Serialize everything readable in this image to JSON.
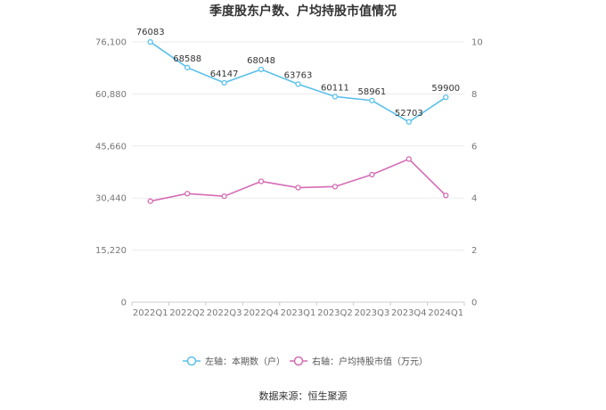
{
  "chart_data": {
    "type": "line",
    "title": "季度股东户数、户均持股市值情况",
    "categories": [
      "2022Q1",
      "2022Q2",
      "2022Q3",
      "2022Q4",
      "2023Q1",
      "2023Q2",
      "2023Q3",
      "2023Q4",
      "2024Q1"
    ],
    "left_axis": {
      "range": [
        0,
        76100
      ],
      "ticks": [
        "0",
        "15,220",
        "30,440",
        "45,660",
        "60,880",
        "76,100"
      ],
      "tick_values": [
        0,
        15220,
        30440,
        45660,
        60880,
        76100
      ]
    },
    "right_axis": {
      "range": [
        0,
        10
      ],
      "ticks": [
        "0",
        "2",
        "4",
        "6",
        "8",
        "10"
      ],
      "tick_values": [
        0,
        2,
        4,
        6,
        8,
        10
      ]
    },
    "series": [
      {
        "name": "左轴：本期数（户）",
        "axis": "left",
        "color": "#5bc0eb",
        "values": [
          76083,
          68588,
          64147,
          68048,
          63763,
          60111,
          58961,
          52703,
          59900
        ],
        "labels": [
          "76083",
          "68588",
          "64147",
          "68048",
          "63763",
          "60111",
          "58961",
          "52703",
          "59900"
        ]
      },
      {
        "name": "右轴：户均持股市值（万元）",
        "axis": "right",
        "color": "#d46cb4",
        "values": [
          3.88,
          4.17,
          4.07,
          4.64,
          4.4,
          4.44,
          4.9,
          5.5,
          4.1
        ]
      }
    ],
    "grid": true,
    "legend_position": "bottom"
  },
  "source": "数据来源：恒生聚源"
}
